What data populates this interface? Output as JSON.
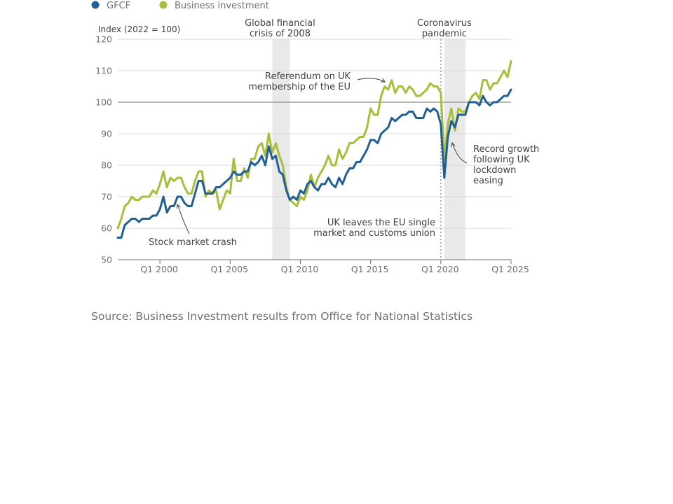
{
  "chart_data": {
    "type": "line",
    "title": "",
    "ylabel": "Index (2022 = 100)",
    "xlabel": "",
    "ylim": [
      50,
      120
    ],
    "yticks": [
      50,
      60,
      70,
      80,
      90,
      100,
      110,
      120
    ],
    "xlim": [
      1997.0,
      2025.0
    ],
    "xticks": [
      {
        "label": "Q1 2000",
        "x": 2000.0
      },
      {
        "label": "Q1 2005",
        "x": 2005.0
      },
      {
        "label": "Q1 2010",
        "x": 2010.0
      },
      {
        "label": "Q1 2015",
        "x": 2015.0
      },
      {
        "label": "Q1 2020",
        "x": 2020.0
      },
      {
        "label": "Q1 2025",
        "x": 2025.0
      }
    ],
    "reference_line": 100,
    "grid": true,
    "legend_position": "top-left",
    "series": [
      {
        "name": "GFCF",
        "color": "#206095",
        "points": [
          [
            1997.0,
            57
          ],
          [
            1997.25,
            57
          ],
          [
            1997.5,
            61
          ],
          [
            1997.75,
            62
          ],
          [
            1998.0,
            63
          ],
          [
            1998.25,
            63
          ],
          [
            1998.5,
            62
          ],
          [
            1998.75,
            63
          ],
          [
            1999.0,
            63
          ],
          [
            1999.25,
            63
          ],
          [
            1999.5,
            64
          ],
          [
            1999.75,
            64
          ],
          [
            2000.0,
            66
          ],
          [
            2000.25,
            70
          ],
          [
            2000.5,
            65
          ],
          [
            2000.75,
            67
          ],
          [
            2001.0,
            67
          ],
          [
            2001.25,
            70
          ],
          [
            2001.5,
            70
          ],
          [
            2001.75,
            68
          ],
          [
            2002.0,
            67
          ],
          [
            2002.25,
            67
          ],
          [
            2002.5,
            71
          ],
          [
            2002.75,
            75
          ],
          [
            2003.0,
            75
          ],
          [
            2003.25,
            71
          ],
          [
            2003.5,
            71
          ],
          [
            2003.75,
            71
          ],
          [
            2004.0,
            73
          ],
          [
            2004.25,
            73
          ],
          [
            2004.5,
            74
          ],
          [
            2004.75,
            75
          ],
          [
            2005.0,
            76
          ],
          [
            2005.25,
            78
          ],
          [
            2005.5,
            77
          ],
          [
            2005.75,
            77
          ],
          [
            2006.0,
            78
          ],
          [
            2006.25,
            78
          ],
          [
            2006.5,
            81
          ],
          [
            2006.75,
            80
          ],
          [
            2007.0,
            81
          ],
          [
            2007.25,
            83
          ],
          [
            2007.5,
            80
          ],
          [
            2007.75,
            86
          ],
          [
            2008.0,
            82
          ],
          [
            2008.25,
            83
          ],
          [
            2008.5,
            78
          ],
          [
            2008.75,
            77
          ],
          [
            2009.0,
            72
          ],
          [
            2009.25,
            69
          ],
          [
            2009.5,
            70
          ],
          [
            2009.75,
            69
          ],
          [
            2010.0,
            72
          ],
          [
            2010.25,
            71
          ],
          [
            2010.5,
            74
          ],
          [
            2010.75,
            75
          ],
          [
            2011.0,
            73
          ],
          [
            2011.25,
            72
          ],
          [
            2011.5,
            74
          ],
          [
            2011.75,
            74
          ],
          [
            2012.0,
            76
          ],
          [
            2012.25,
            74
          ],
          [
            2012.5,
            73
          ],
          [
            2012.75,
            76
          ],
          [
            2013.0,
            74
          ],
          [
            2013.25,
            77
          ],
          [
            2013.5,
            79
          ],
          [
            2013.75,
            79
          ],
          [
            2014.0,
            81
          ],
          [
            2014.25,
            81
          ],
          [
            2014.5,
            83
          ],
          [
            2014.75,
            85
          ],
          [
            2015.0,
            88
          ],
          [
            2015.25,
            88
          ],
          [
            2015.5,
            87
          ],
          [
            2015.75,
            90
          ],
          [
            2016.0,
            91
          ],
          [
            2016.25,
            92
          ],
          [
            2016.5,
            95
          ],
          [
            2016.75,
            94
          ],
          [
            2017.0,
            95
          ],
          [
            2017.25,
            96
          ],
          [
            2017.5,
            96
          ],
          [
            2017.75,
            97
          ],
          [
            2018.0,
            97
          ],
          [
            2018.25,
            95
          ],
          [
            2018.5,
            95
          ],
          [
            2018.75,
            95
          ],
          [
            2019.0,
            98
          ],
          [
            2019.25,
            97
          ],
          [
            2019.5,
            98
          ],
          [
            2019.75,
            97
          ],
          [
            2020.0,
            93
          ],
          [
            2020.25,
            76
          ],
          [
            2020.5,
            89
          ],
          [
            2020.75,
            94
          ],
          [
            2021.0,
            92
          ],
          [
            2021.25,
            96
          ],
          [
            2021.5,
            96
          ],
          [
            2021.75,
            96
          ],
          [
            2022.0,
            100
          ],
          [
            2022.25,
            100
          ],
          [
            2022.5,
            100
          ],
          [
            2022.75,
            99
          ],
          [
            2023.0,
            102
          ],
          [
            2023.25,
            100
          ],
          [
            2023.5,
            99
          ],
          [
            2023.75,
            100
          ],
          [
            2024.0,
            100
          ],
          [
            2024.25,
            101
          ],
          [
            2024.5,
            102
          ],
          [
            2024.75,
            102
          ],
          [
            2025.0,
            104
          ]
        ]
      },
      {
        "name": "Business investment",
        "color": "#a8bd3a",
        "points": [
          [
            1997.0,
            60
          ],
          [
            1997.25,
            63
          ],
          [
            1997.5,
            67
          ],
          [
            1997.75,
            68
          ],
          [
            1998.0,
            70
          ],
          [
            1998.25,
            69
          ],
          [
            1998.5,
            69
          ],
          [
            1998.75,
            70
          ],
          [
            1999.0,
            70
          ],
          [
            1999.25,
            70
          ],
          [
            1999.5,
            72
          ],
          [
            1999.75,
            71
          ],
          [
            2000.0,
            74
          ],
          [
            2000.25,
            78
          ],
          [
            2000.5,
            73
          ],
          [
            2000.75,
            76
          ],
          [
            2001.0,
            75
          ],
          [
            2001.25,
            76
          ],
          [
            2001.5,
            76
          ],
          [
            2001.75,
            73
          ],
          [
            2002.0,
            71
          ],
          [
            2002.25,
            71
          ],
          [
            2002.5,
            75
          ],
          [
            2002.75,
            78
          ],
          [
            2003.0,
            78
          ],
          [
            2003.25,
            70
          ],
          [
            2003.5,
            72
          ],
          [
            2003.75,
            71
          ],
          [
            2004.0,
            72
          ],
          [
            2004.25,
            66
          ],
          [
            2004.5,
            69
          ],
          [
            2004.75,
            72
          ],
          [
            2005.0,
            71
          ],
          [
            2005.25,
            82
          ],
          [
            2005.5,
            75
          ],
          [
            2005.75,
            75
          ],
          [
            2006.0,
            79
          ],
          [
            2006.25,
            76
          ],
          [
            2006.5,
            82
          ],
          [
            2006.75,
            82
          ],
          [
            2007.0,
            86
          ],
          [
            2007.25,
            87
          ],
          [
            2007.5,
            83
          ],
          [
            2007.75,
            90
          ],
          [
            2008.0,
            84
          ],
          [
            2008.25,
            87
          ],
          [
            2008.5,
            83
          ],
          [
            2008.75,
            80
          ],
          [
            2009.0,
            73
          ],
          [
            2009.25,
            69
          ],
          [
            2009.5,
            68
          ],
          [
            2009.75,
            67
          ],
          [
            2010.0,
            70
          ],
          [
            2010.25,
            69
          ],
          [
            2010.5,
            72
          ],
          [
            2010.75,
            77
          ],
          [
            2011.0,
            73
          ],
          [
            2011.25,
            76
          ],
          [
            2011.5,
            78
          ],
          [
            2011.75,
            80
          ],
          [
            2012.0,
            83
          ],
          [
            2012.25,
            80
          ],
          [
            2012.5,
            80
          ],
          [
            2012.75,
            85
          ],
          [
            2013.0,
            82
          ],
          [
            2013.25,
            84
          ],
          [
            2013.5,
            87
          ],
          [
            2013.75,
            87
          ],
          [
            2014.0,
            88
          ],
          [
            2014.25,
            89
          ],
          [
            2014.5,
            89
          ],
          [
            2014.75,
            92
          ],
          [
            2015.0,
            98
          ],
          [
            2015.25,
            96
          ],
          [
            2015.5,
            96
          ],
          [
            2015.75,
            102
          ],
          [
            2016.0,
            105
          ],
          [
            2016.25,
            104
          ],
          [
            2016.5,
            107
          ],
          [
            2016.75,
            103
          ],
          [
            2017.0,
            105
          ],
          [
            2017.25,
            105
          ],
          [
            2017.5,
            103
          ],
          [
            2017.75,
            105
          ],
          [
            2018.0,
            104
          ],
          [
            2018.25,
            102
          ],
          [
            2018.5,
            102
          ],
          [
            2018.75,
            103
          ],
          [
            2019.0,
            104
          ],
          [
            2019.25,
            106
          ],
          [
            2019.5,
            105
          ],
          [
            2019.75,
            105
          ],
          [
            2020.0,
            103
          ],
          [
            2020.25,
            82
          ],
          [
            2020.5,
            93
          ],
          [
            2020.75,
            98
          ],
          [
            2021.0,
            91
          ],
          [
            2021.25,
            98
          ],
          [
            2021.5,
            97
          ],
          [
            2021.75,
            97
          ],
          [
            2022.0,
            100
          ],
          [
            2022.25,
            102
          ],
          [
            2022.5,
            103
          ],
          [
            2022.75,
            101
          ],
          [
            2023.0,
            107
          ],
          [
            2023.25,
            107
          ],
          [
            2023.5,
            104
          ],
          [
            2023.75,
            106
          ],
          [
            2024.0,
            106
          ],
          [
            2024.25,
            108
          ],
          [
            2024.5,
            110
          ],
          [
            2024.75,
            108
          ],
          [
            2025.0,
            113
          ]
        ]
      }
    ],
    "shaded_periods": [
      {
        "label": "Global financial crisis of 2008",
        "label_lines": [
          "Global financial",
          "crisis of 2008"
        ],
        "from": 2008.0,
        "to": 2009.25
      },
      {
        "label": "Coronavirus pandemic",
        "label_lines": [
          "Coronavirus",
          "pandemic"
        ],
        "from": 2020.25,
        "to": 2021.75
      }
    ],
    "event_line": {
      "x": 2020.0,
      "style": "dotted"
    },
    "annotations": [
      {
        "id": "stock-market-crash",
        "lines": [
          "Stock market crash"
        ],
        "x": 2001.25,
        "y": 68
      },
      {
        "id": "referendum",
        "lines": [
          "Referendum on UK",
          "membership of the EU"
        ],
        "x": 2016.5,
        "y": 106
      },
      {
        "id": "uk-leaves-eu",
        "lines": [
          "UK leaves the EU single",
          "market and customs union"
        ],
        "x": 2020.0,
        "y": 60
      },
      {
        "id": "record-growth",
        "lines": [
          "Record growth",
          "following UK",
          "lockdown",
          "easing"
        ],
        "x": 2020.75,
        "y": 87
      }
    ]
  },
  "source": "Source: Business Investment results from Office for National Statistics"
}
